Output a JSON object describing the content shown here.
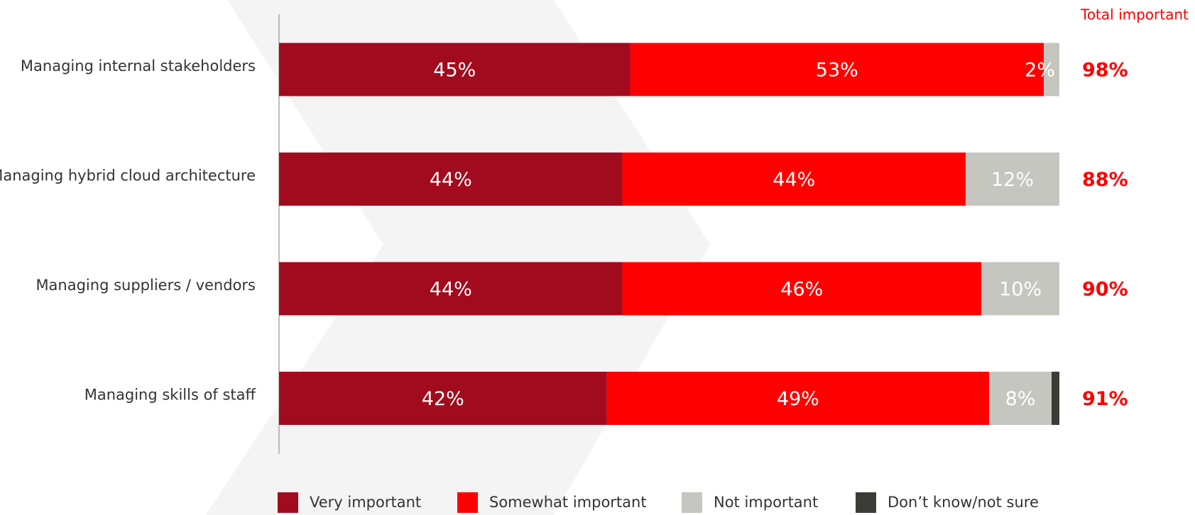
{
  "chart_data": {
    "type": "stacked-bar-horizontal",
    "categories": [
      "Managing internal stakeholders",
      "Managing hybrid cloud architecture",
      "Managing suppliers / vendors",
      "Managing skills of staff"
    ],
    "series": [
      {
        "name": "Very important",
        "color": "#a20a1e",
        "values": [
          45,
          44,
          44,
          42
        ],
        "value_labels": [
          "45%",
          "44%",
          "44%",
          "42%"
        ]
      },
      {
        "name": "Somewhat important",
        "color": "#ff0000",
        "values": [
          53,
          44,
          46,
          49
        ],
        "value_labels": [
          "53%",
          "44%",
          "46%",
          "49%"
        ]
      },
      {
        "name": "Not important",
        "color": "#c6c6c0",
        "values": [
          2,
          12,
          10,
          8
        ],
        "value_labels": [
          "2%",
          "12%",
          "10%",
          "8%"
        ]
      },
      {
        "name": "Don’t know/not sure",
        "color": "#3c3c36",
        "values": [
          0,
          0,
          0,
          1
        ]
      }
    ],
    "xlim": [
      0,
      100
    ],
    "totals": {
      "title": "Total important",
      "values": [
        98,
        88,
        90,
        91
      ],
      "value_labels": [
        "98%",
        "88%",
        "90%",
        "91%"
      ]
    }
  }
}
